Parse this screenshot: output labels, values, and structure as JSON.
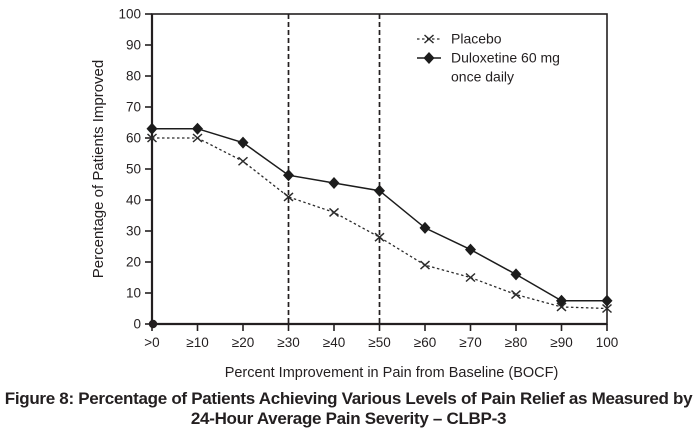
{
  "figure": {
    "caption_line1": "Figure 8: Percentage of Patients Achieving Various Levels of Pain Relief as Measured by",
    "caption_line2": "24-Hour Average Pain Severity – CLBP-3"
  },
  "chart_data": {
    "type": "line",
    "title": "",
    "xlabel": "Percent Improvement in Pain from Baseline (BOCF)",
    "ylabel": "Percentage of Patients Improved",
    "categories": [
      ">0",
      "≥10",
      "≥20",
      "≥30",
      "≥40",
      "≥50",
      "≥60",
      "≥70",
      "≥80",
      "≥90",
      "100"
    ],
    "ylim": [
      0,
      100
    ],
    "ytick_step": 10,
    "grid": false,
    "frame": true,
    "legend_position": "top-right-inside",
    "reference_lines_at_categories": [
      "≥30",
      "≥50"
    ],
    "origin_marker": true,
    "series": [
      {
        "name": "Placebo",
        "legend_lines": [
          "Placebo"
        ],
        "marker": "x",
        "line_style": "dashed",
        "color": "#2b2b2b",
        "values": [
          60,
          60,
          52.5,
          41,
          36,
          28,
          19,
          15,
          9.5,
          5.5,
          5
        ]
      },
      {
        "name": "Duloxetine 60 mg once daily",
        "legend_lines": [
          "Duloxetine 60 mg",
          "once daily"
        ],
        "marker": "diamond",
        "line_style": "solid",
        "color": "#1c1c1c",
        "values": [
          63,
          63,
          58.5,
          48,
          45.5,
          43,
          31,
          24,
          16,
          7.5,
          7.5
        ]
      }
    ]
  },
  "colors": {
    "background": "#ffffff",
    "axis": "#231f20",
    "text": "#231f20"
  }
}
